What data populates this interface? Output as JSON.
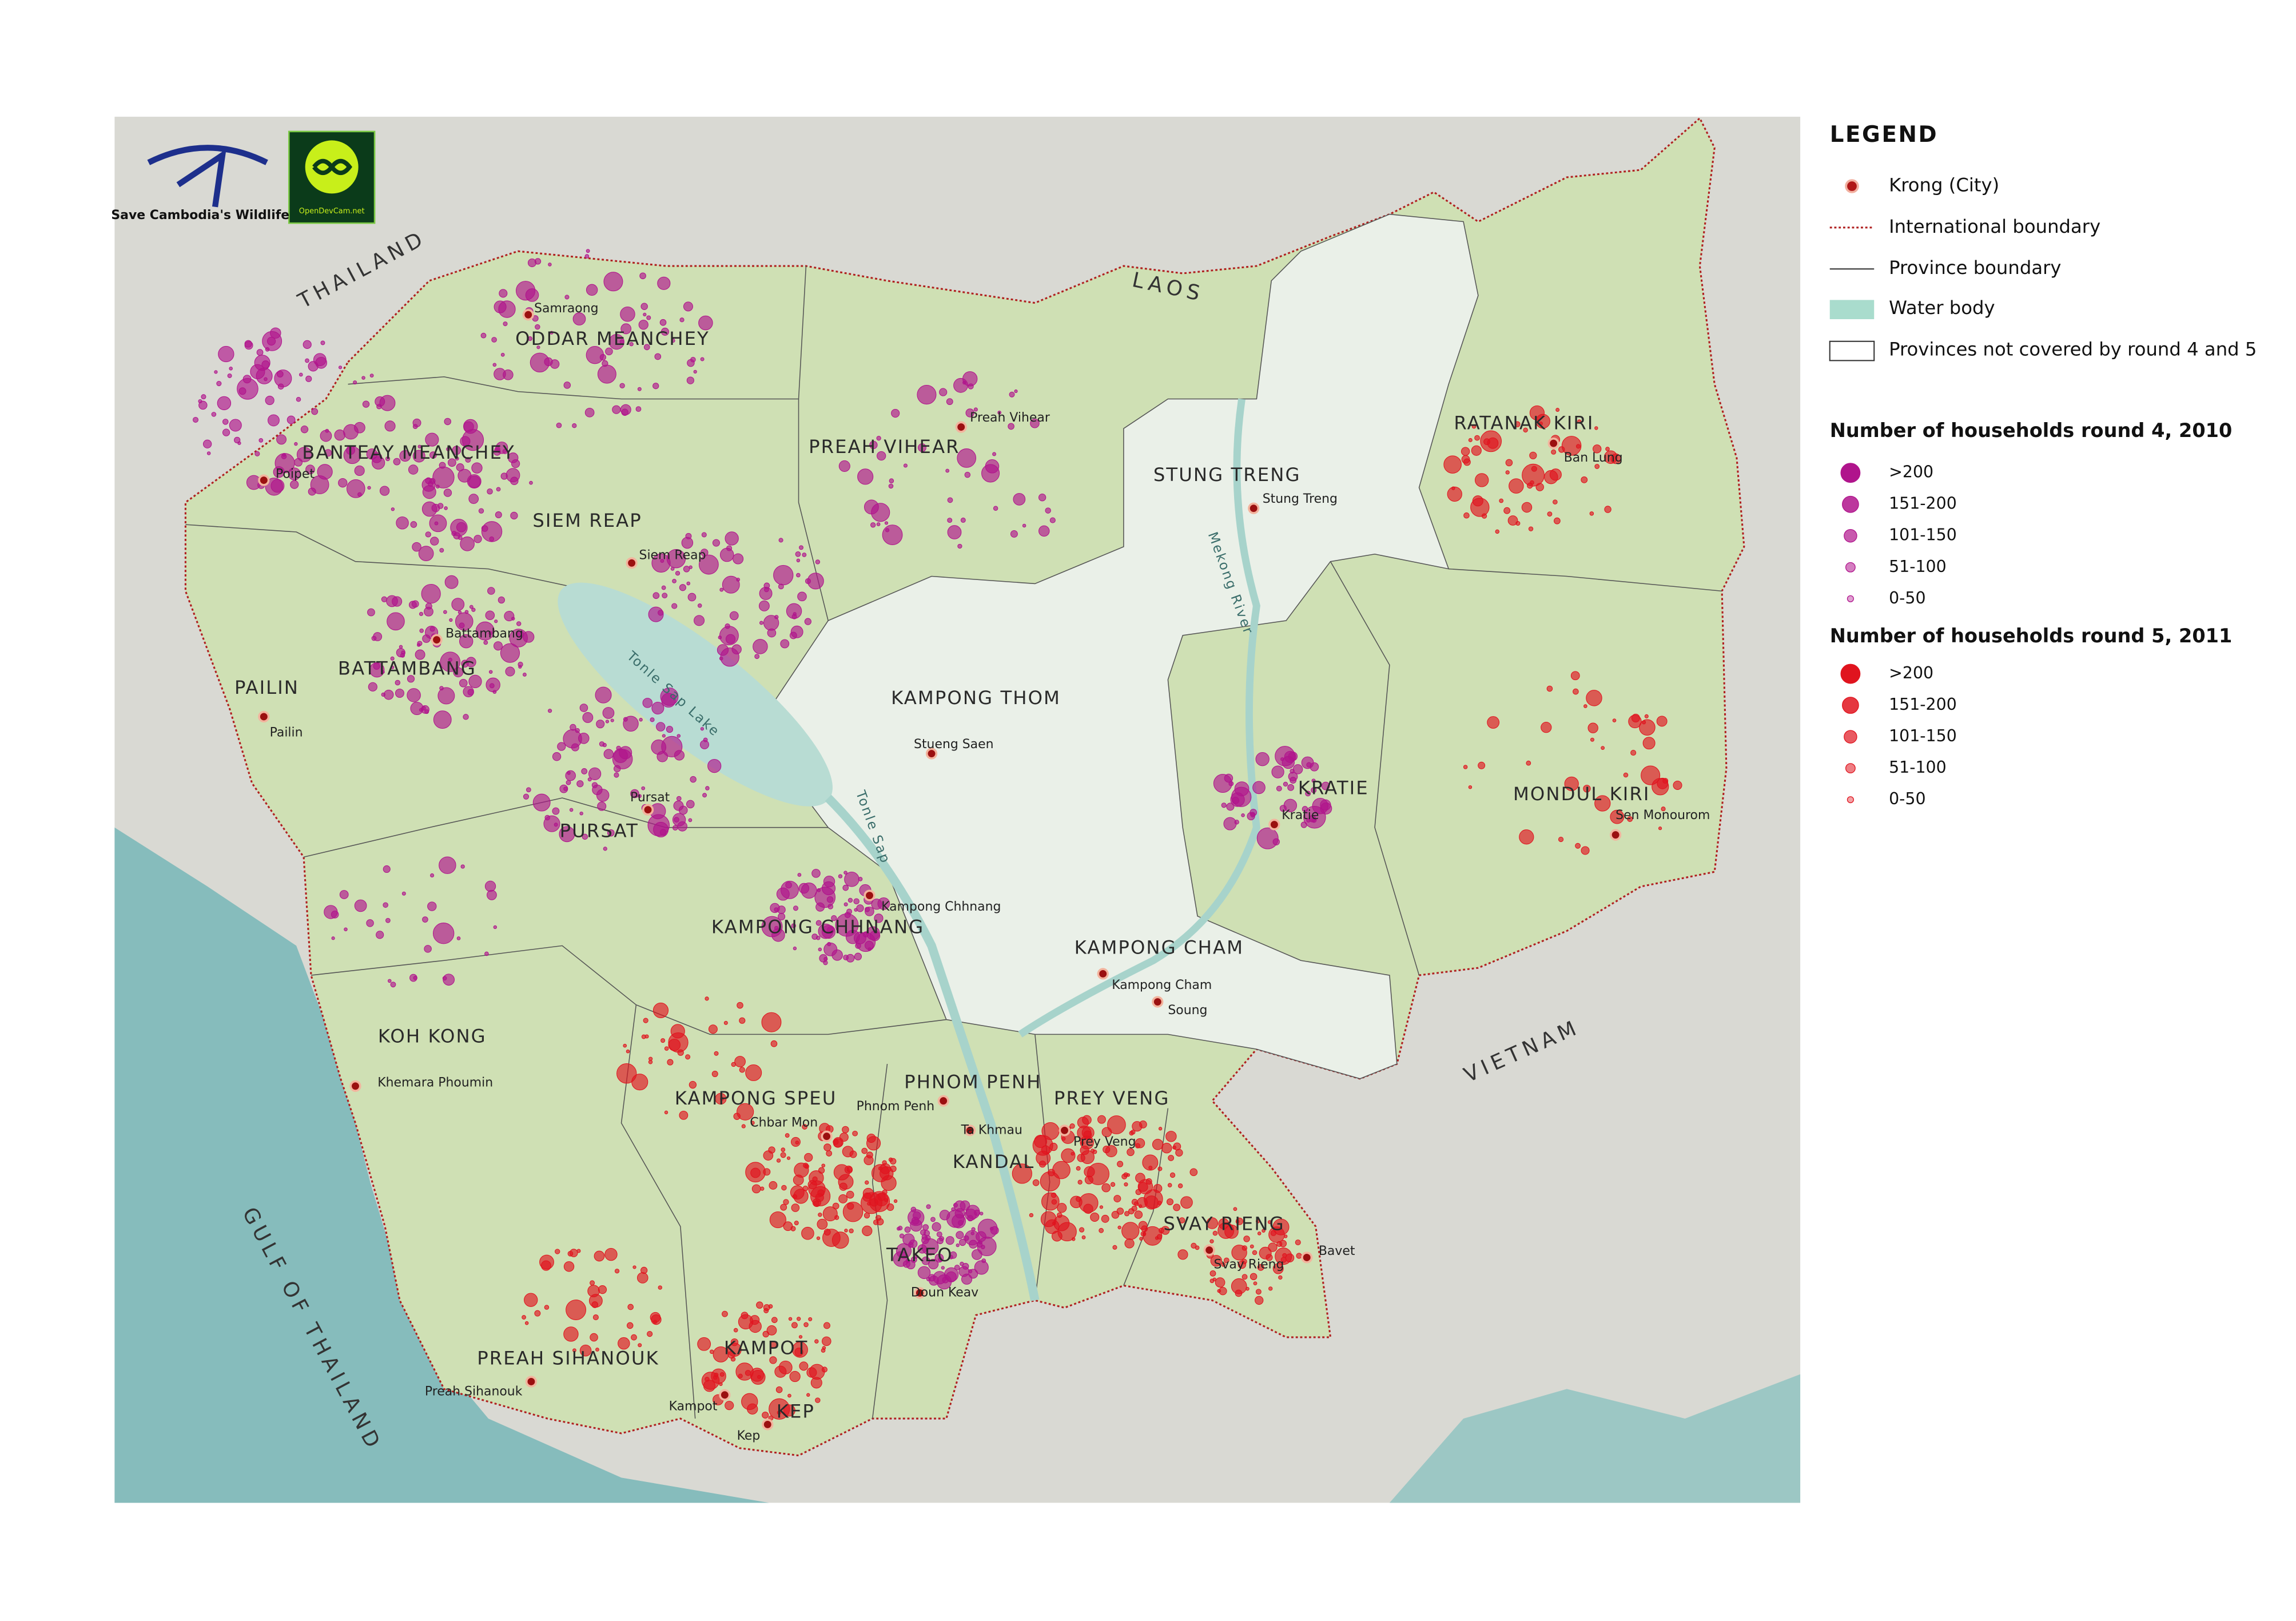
{
  "logos": {
    "organization": "Save Cambodia's Wildlife",
    "partner": "OpenDevCam.net"
  },
  "countries": [
    "THAILAND",
    "LAOS",
    "VIETNAM",
    "GULF OF THAILAND"
  ],
  "provinces": [
    "ODDAR MEANCHEY",
    "BANTEAY MEANCHEY",
    "SIEM REAP",
    "PREAH VIHEAR",
    "STUNG TRENG",
    "RATANAK KIRI",
    "PAILIN",
    "BATTAMBANG",
    "KAMPONG THOM",
    "KRATIE",
    "MONDUL KIRI",
    "PURSAT",
    "KAMPONG CHHNANG",
    "KAMPONG CHAM",
    "KOH KONG",
    "KAMPONG SPEU",
    "PHNOM PENH",
    "PREY VENG",
    "KANDAL",
    "SVAY RIENG",
    "TAKEO",
    "PREAH SIHANOUK",
    "KAMPOT",
    "KEP"
  ],
  "cities": [
    "Samraong",
    "Poipet",
    "Siem Reap",
    "Preah Vihear",
    "Stung Treng",
    "Ban Lung",
    "Battambang",
    "Pailin",
    "Stueng Saen",
    "Kratie",
    "Sen Monourom",
    "Pursat",
    "Kampong Chhnang",
    "Kampong Cham",
    "Soung",
    "Khemara Phoumin",
    "Phnom Penh",
    "Chbar Mon",
    "Ta Khmau",
    "Prey Veng",
    "Svay Rieng",
    "Bavet",
    "Doun Keav",
    "Preah Sihanouk",
    "Kampot",
    "Kep"
  ],
  "water_features": [
    "Tonle Sap Lake",
    "Tonle Sap",
    "Mekong River"
  ],
  "legend": {
    "title": "LEGEND",
    "items": [
      "Krong (City)",
      "International boundary",
      "Province boundary",
      "Water body",
      "Provinces not covered by round 4 and 5"
    ],
    "round4": {
      "title": "Number of households round 4, 2010",
      "classes": [
        ">200",
        "151-200",
        "101-150",
        "51-100",
        "0-50"
      ]
    },
    "round5": {
      "title": "Number of households round 5, 2011",
      "classes": [
        ">200",
        "151-200",
        "101-150",
        "51-100",
        "0-50"
      ]
    }
  }
}
